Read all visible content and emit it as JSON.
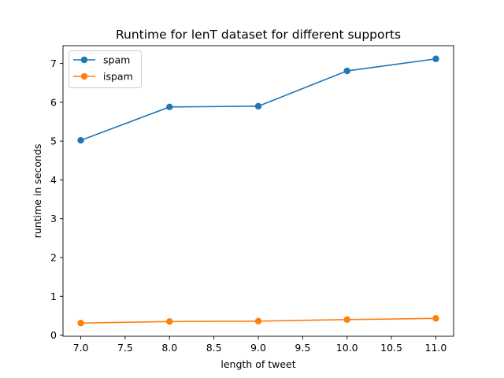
{
  "chart_data": {
    "type": "line",
    "title": "Runtime for lenT dataset for different supports",
    "xlabel": "length of tweet",
    "ylabel": "runtime in seconds",
    "x": [
      7.0,
      8.0,
      9.0,
      10.0,
      11.0
    ],
    "series": [
      {
        "name": "spam",
        "color": "#1f77b4",
        "values": [
          5.02,
          5.88,
          5.9,
          6.81,
          7.12
        ]
      },
      {
        "name": "ispam",
        "color": "#ff7f0e",
        "values": [
          0.31,
          0.35,
          0.36,
          0.4,
          0.43
        ]
      }
    ],
    "xticks": [
      "7.0",
      "7.5",
      "8.0",
      "8.5",
      "9.0",
      "9.5",
      "10.0",
      "10.5",
      "11.0"
    ],
    "yticks": [
      "0",
      "1",
      "2",
      "3",
      "4",
      "5",
      "6",
      "7"
    ],
    "xlim": [
      6.8,
      11.2
    ],
    "ylim": [
      -0.03,
      7.46
    ],
    "grid": false,
    "legend_position": "top-left",
    "marker": "circle"
  }
}
